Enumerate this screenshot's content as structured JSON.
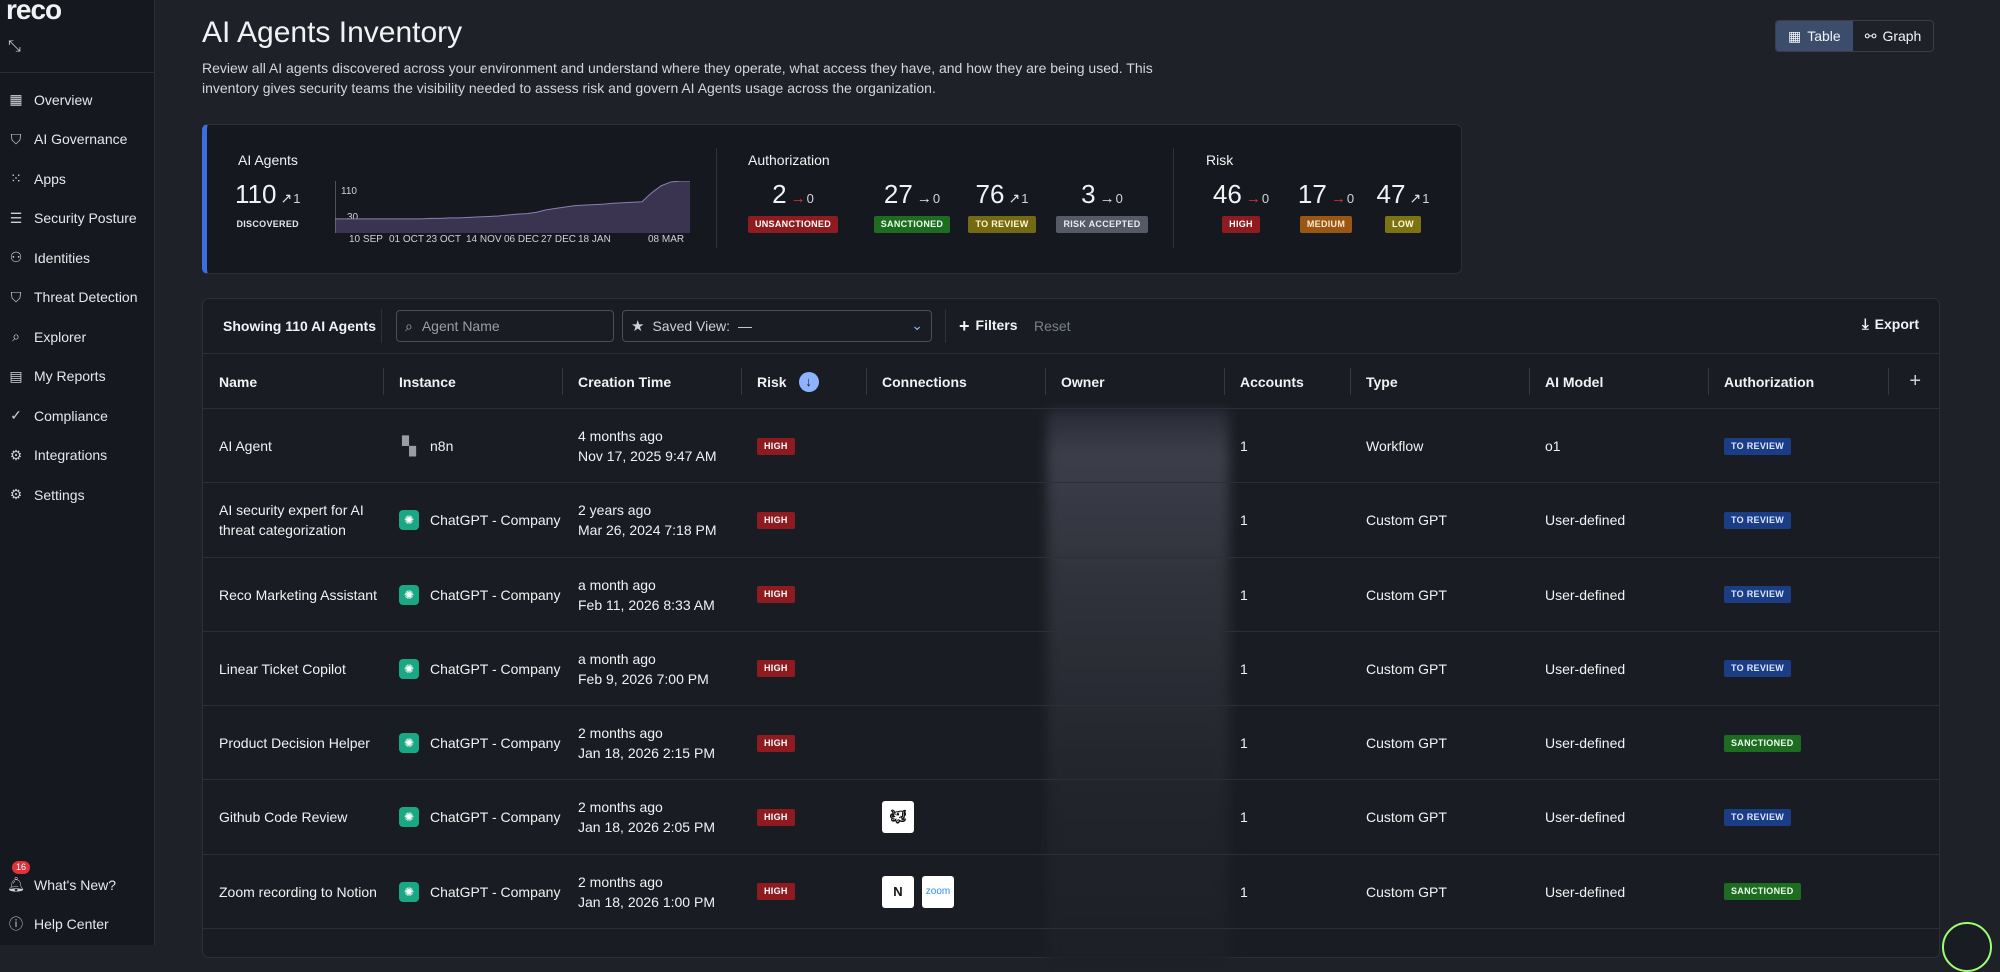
{
  "app": {
    "logo": "reco"
  },
  "sidebar": {
    "items": [
      {
        "label": "Overview",
        "icon": "dashboard-icon"
      },
      {
        "label": "AI Governance",
        "icon": "shield-gear-icon"
      },
      {
        "label": "Apps",
        "icon": "grid-icon"
      },
      {
        "label": "Security Posture",
        "icon": "checklist-icon"
      },
      {
        "label": "Identities",
        "icon": "person-icon"
      },
      {
        "label": "Threat Detection",
        "icon": "shield-icon"
      },
      {
        "label": "Explorer",
        "icon": "search-list-icon"
      },
      {
        "label": "My Reports",
        "icon": "report-icon"
      },
      {
        "label": "Compliance",
        "icon": "check-circle-icon"
      },
      {
        "label": "Integrations",
        "icon": "puzzle-icon"
      },
      {
        "label": "Settings",
        "icon": "gear-icon"
      }
    ],
    "whats_new": {
      "label": "What's New?",
      "count": "16"
    },
    "help": {
      "label": "Help Center"
    }
  },
  "header": {
    "title": "AI Agents Inventory",
    "description": "Review all AI agents discovered across your environment and understand where they operate, what access they have, and how they are being used. This inventory gives security teams the visibility needed to assess risk and govern AI Agents usage across the organization.",
    "views": [
      {
        "label": "Table",
        "active": true
      },
      {
        "label": "Graph",
        "active": false
      }
    ]
  },
  "summary": {
    "agents": {
      "title": "AI Agents",
      "value": "110",
      "delta": "1",
      "label": "DISCOVERED",
      "spark": {
        "y_ticks": [
          "110",
          "30"
        ],
        "x_labels": [
          "10 SEP",
          "01 OCT",
          "23 OCT",
          "14 NOV",
          "06 DEC",
          "27 DEC",
          "18 JAN",
          "08 MAR"
        ],
        "values": [
          30,
          30,
          30,
          30,
          30,
          30,
          30,
          30,
          30,
          30,
          31,
          31,
          32,
          32,
          33,
          34,
          35,
          36,
          38,
          40,
          41,
          44,
          49,
          52,
          55,
          58,
          59,
          60,
          61,
          63,
          64,
          65,
          66,
          85,
          100,
          108,
          110,
          110
        ]
      }
    },
    "authorization": {
      "title": "Authorization",
      "stats": [
        {
          "value": "2",
          "delta": "0",
          "label": "UNSANCTIONED",
          "color": "#8e1b1f"
        },
        {
          "value": "27",
          "delta": "0",
          "label": "SANCTIONED",
          "color": "#1e6b22"
        },
        {
          "value": "76",
          "delta": "1",
          "label": "TO REVIEW",
          "color": "#756a14"
        },
        {
          "value": "3",
          "delta": "0",
          "label": "RISK ACCEPTED",
          "color": "#555a66"
        }
      ]
    },
    "risk": {
      "title": "Risk",
      "stats": [
        {
          "value": "46",
          "delta": "0",
          "label": "HIGH",
          "color": "#8e1b1f"
        },
        {
          "value": "17",
          "delta": "0",
          "label": "MEDIUM",
          "color": "#9a5614"
        },
        {
          "value": "47",
          "delta": "1",
          "label": "LOW",
          "color": "#7c7414"
        }
      ]
    }
  },
  "table": {
    "showing": "Showing 110 AI Agents",
    "search_placeholder": "Agent Name",
    "saved_view": {
      "label": "Saved View:",
      "value": "—"
    },
    "filters": "Filters",
    "reset": "Reset",
    "export": "Export",
    "columns": [
      "Name",
      "Instance",
      "Creation Time",
      "Risk",
      "Connections",
      "Owner",
      "Accounts",
      "Type",
      "AI Model",
      "Authorization"
    ],
    "rows": [
      {
        "name": "AI Agent",
        "instance": "n8n",
        "inst_type": "n8n",
        "ago": "4 months ago",
        "date": "Nov 17, 2025 9:47 AM",
        "risk": "HIGH",
        "connections": [],
        "accounts": "1",
        "type": "Workflow",
        "model": "o1",
        "auth": "TO REVIEW"
      },
      {
        "name": "AI security expert for AI threat categorization",
        "instance": "ChatGPT - Company",
        "inst_type": "gpt",
        "ago": "2 years ago",
        "date": "Mar 26, 2024 7:18 PM",
        "risk": "HIGH",
        "connections": [],
        "accounts": "1",
        "type": "Custom GPT",
        "model": "User-defined",
        "auth": "TO REVIEW"
      },
      {
        "name": "Reco Marketing Assistant",
        "instance": "ChatGPT - Company",
        "inst_type": "gpt",
        "ago": "a month ago",
        "date": "Feb 11, 2026 8:33 AM",
        "risk": "HIGH",
        "connections": [],
        "accounts": "1",
        "type": "Custom GPT",
        "model": "User-defined",
        "auth": "TO REVIEW"
      },
      {
        "name": "Linear Ticket Copilot",
        "instance": "ChatGPT - Company",
        "inst_type": "gpt",
        "ago": "a month ago",
        "date": "Feb 9, 2026 7:00 PM",
        "risk": "HIGH",
        "connections": [],
        "accounts": "1",
        "type": "Custom GPT",
        "model": "User-defined",
        "auth": "TO REVIEW"
      },
      {
        "name": "Product Decision Helper",
        "instance": "ChatGPT - Company",
        "inst_type": "gpt",
        "ago": "2 months ago",
        "date": "Jan 18, 2026 2:15 PM",
        "risk": "HIGH",
        "connections": [],
        "accounts": "1",
        "type": "Custom GPT",
        "model": "User-defined",
        "auth": "SANCTIONED"
      },
      {
        "name": "Github Code Review",
        "instance": "ChatGPT - Company",
        "inst_type": "gpt",
        "ago": "2 months ago",
        "date": "Jan 18, 2026 2:05 PM",
        "risk": "HIGH",
        "connections": [
          "github"
        ],
        "accounts": "1",
        "type": "Custom GPT",
        "model": "User-defined",
        "auth": "TO REVIEW"
      },
      {
        "name": "Zoom recording to Notion",
        "instance": "ChatGPT - Company",
        "inst_type": "gpt",
        "ago": "2 months ago",
        "date": "Jan 18, 2026 1:00 PM",
        "risk": "HIGH",
        "connections": [
          "notion",
          "zoom"
        ],
        "accounts": "1",
        "type": "Custom GPT",
        "model": "User-defined",
        "auth": "SANCTIONED"
      }
    ]
  }
}
